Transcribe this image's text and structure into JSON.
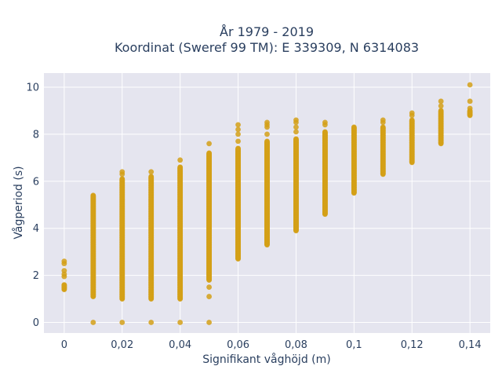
{
  "chart_data": {
    "type": "scatter",
    "title": "År 1979 - 2019",
    "subtitle": "Koordinat (Sweref 99 TM): E 339309, N 6314083",
    "xlabel": "Signifikant våghöjd (m)",
    "ylabel": "Vågperiod (s)",
    "xlim": [
      -0.007,
      0.147
    ],
    "ylim": [
      -0.45,
      10.6
    ],
    "xticks": [
      0,
      0.02,
      0.04,
      0.06,
      0.08,
      0.1,
      0.12,
      0.14
    ],
    "xtick_labels": [
      "0",
      "0,02",
      "0,04",
      "0,06",
      "0,08",
      "0,1",
      "0,12",
      "0,14"
    ],
    "yticks": [
      0,
      2,
      4,
      6,
      8,
      10
    ],
    "ytick_labels": [
      "0",
      "2",
      "4",
      "6",
      "8",
      "10"
    ],
    "grid": true,
    "legend": "none",
    "colors": {
      "marker": "#d4a017",
      "plot_bg": "#e5e5ef",
      "grid": "#ffffff"
    },
    "columns": [
      {
        "x": 0.0,
        "y_min": 1.4,
        "y_max": 1.6,
        "extra_y": [
          1.95,
          2.05,
          2.2,
          2.5,
          2.6
        ]
      },
      {
        "x": 0.01,
        "y_min": 1.1,
        "y_max": 5.4,
        "extra_y": [
          0
        ]
      },
      {
        "x": 0.02,
        "y_min": 1.0,
        "y_max": 6.1,
        "extra_y": [
          0,
          6.3,
          6.4
        ]
      },
      {
        "x": 0.03,
        "y_min": 1.0,
        "y_max": 6.2,
        "extra_y": [
          0,
          6.4
        ]
      },
      {
        "x": 0.04,
        "y_min": 1.0,
        "y_max": 6.6,
        "extra_y": [
          0,
          6.9
        ]
      },
      {
        "x": 0.05,
        "y_min": 1.8,
        "y_max": 7.2,
        "extra_y": [
          0,
          1.1,
          1.5,
          7.6
        ]
      },
      {
        "x": 0.06,
        "y_min": 2.7,
        "y_max": 7.4,
        "extra_y": [
          7.7,
          8.0,
          8.2,
          8.4
        ]
      },
      {
        "x": 0.07,
        "y_min": 3.3,
        "y_max": 7.7,
        "extra_y": [
          8.0,
          8.3,
          8.4,
          8.5
        ]
      },
      {
        "x": 0.08,
        "y_min": 3.9,
        "y_max": 7.8,
        "extra_y": [
          8.1,
          8.3,
          8.5,
          8.6
        ]
      },
      {
        "x": 0.09,
        "y_min": 4.6,
        "y_max": 8.1,
        "extra_y": [
          8.4,
          8.5
        ]
      },
      {
        "x": 0.1,
        "y_min": 5.5,
        "y_max": 8.3,
        "extra_y": []
      },
      {
        "x": 0.11,
        "y_min": 6.3,
        "y_max": 8.3,
        "extra_y": [
          8.5,
          8.6
        ]
      },
      {
        "x": 0.12,
        "y_min": 6.8,
        "y_max": 8.6,
        "extra_y": [
          8.8,
          8.9
        ]
      },
      {
        "x": 0.13,
        "y_min": 7.6,
        "y_max": 9.0,
        "extra_y": [
          9.2,
          9.4
        ]
      },
      {
        "x": 0.14,
        "y_min": 8.8,
        "y_max": 9.0,
        "extra_y": [
          9.1,
          9.4,
          10.1
        ]
      }
    ]
  }
}
